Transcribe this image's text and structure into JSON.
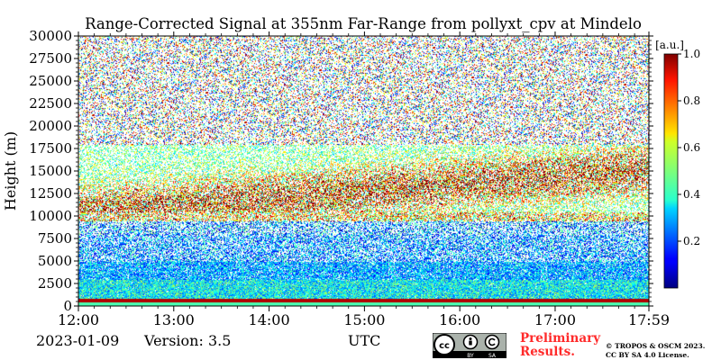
{
  "chart_data": {
    "type": "heatmap",
    "title": "Range-Corrected Signal at 355nm Far-Range from pollyxt_cpv at Mindelo",
    "ylabel": "Height (m)",
    "xlabel": "UTC",
    "x_tick_labels": [
      "12:00",
      "13:00",
      "14:00",
      "15:00",
      "16:00",
      "17:00",
      "17:59"
    ],
    "x_tick_values_hours": [
      12.0,
      13.0,
      14.0,
      15.0,
      16.0,
      17.0,
      17.9833
    ],
    "xlim": [
      12.0,
      17.9833
    ],
    "y_tick_labels": [
      "0",
      "2500",
      "5000",
      "7500",
      "10000",
      "12500",
      "15000",
      "17500",
      "20000",
      "22500",
      "25000",
      "27500",
      "30000"
    ],
    "y_tick_values": [
      0,
      2500,
      5000,
      7500,
      10000,
      12500,
      15000,
      17500,
      20000,
      22500,
      25000,
      27500,
      30000
    ],
    "ylim": [
      0,
      30000
    ],
    "colorbar": {
      "label": "[a.u.]",
      "min": 0.0,
      "max": 1.0,
      "tick_labels": [
        "0.2",
        "0.4",
        "0.6",
        "0.8",
        "1.0"
      ],
      "tick_values": [
        0.2,
        0.4,
        0.6,
        0.8,
        1.0
      ],
      "colormap": "jet"
    },
    "features": {
      "surface_bright_layer_height_m": [
        500,
        900
      ],
      "boundary_layer_top_m": 3000,
      "dust_layer_top_m": 5000,
      "elevated_layer_m": [
        9500,
        10500
      ],
      "cirrus_layer_m": [
        10500,
        18000
      ]
    }
  },
  "footer": {
    "date": "2023-01-09",
    "version": "Version: 3.5",
    "xlabel": "UTC",
    "preliminary": "Preliminary Results.",
    "copyright_line1": "© TROPOS & OSCM 2023.",
    "copyright_line2": "CC BY SA 4.0 License."
  },
  "license_badge": {
    "cc": "cc",
    "by": "BY",
    "sa": "SA"
  },
  "colors": {
    "background": "#ffffff",
    "badge_bg": "#aab2ab",
    "prelim_red": "#ff2a2a"
  }
}
